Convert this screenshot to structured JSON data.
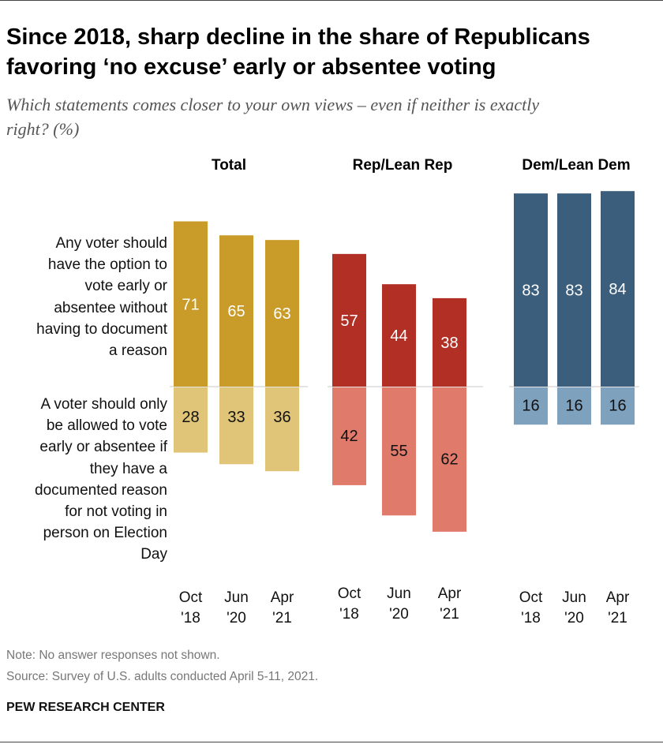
{
  "title_line1": "Since 2018, sharp decline in the share of Republicans",
  "title_line2": "favoring ‘no excuse’ early or absentee voting",
  "subtitle_line1": "Which statements comes closer to your own views – even if neither is exactly",
  "subtitle_line2": "right? (%)",
  "row_labels": {
    "top": [
      "Any voter should",
      "have the option to",
      "vote early or",
      "absentee without",
      "having to document",
      "a reason"
    ],
    "bottom": [
      "A voter should only",
      "be allowed to vote",
      "early or absentee if",
      "they have a",
      "documented reason",
      "for not voting in",
      "person on Election",
      "Day"
    ]
  },
  "note": "Note: No answer responses not shown.",
  "source": "Source: Survey of U.S. adults conducted April 5-11, 2021.",
  "brand": "PEW RESEARCH CENTER",
  "chart_data": {
    "type": "bar",
    "orientation": "diverging-vertical",
    "categories": [
      "Oct '18",
      "Jun '20",
      "Apr '21"
    ],
    "category_lines": [
      [
        "Oct",
        "'18"
      ],
      [
        "Jun",
        "'20"
      ],
      [
        "Apr",
        "'21"
      ]
    ],
    "series_order": [
      "Any voter should have the option to vote early or absentee without having to document a reason",
      "A voter should only be allowed to vote early or absentee if they have a documented reason for not voting in person on Election Day"
    ],
    "groups": [
      {
        "name": "Total",
        "no_excuse": [
          71,
          65,
          63
        ],
        "documented_reason": [
          28,
          33,
          36
        ],
        "colors": {
          "top": "#c99c2a",
          "bottom": "#e0c478"
        }
      },
      {
        "name": "Rep/Lean Rep",
        "no_excuse": [
          57,
          44,
          38
        ],
        "documented_reason": [
          42,
          55,
          62
        ],
        "colors": {
          "top": "#b12f24",
          "bottom": "#e07b6c"
        }
      },
      {
        "name": "Dem/Lean Dem",
        "no_excuse": [
          83,
          83,
          84
        ],
        "documented_reason": [
          16,
          16,
          16
        ],
        "colors": {
          "top": "#3a5e7c",
          "bottom": "#7ea1be"
        }
      }
    ],
    "label_colors": {
      "on_dark": "#ffffff",
      "on_light": "#111111"
    },
    "baseline_color": "#c8c8c8"
  }
}
